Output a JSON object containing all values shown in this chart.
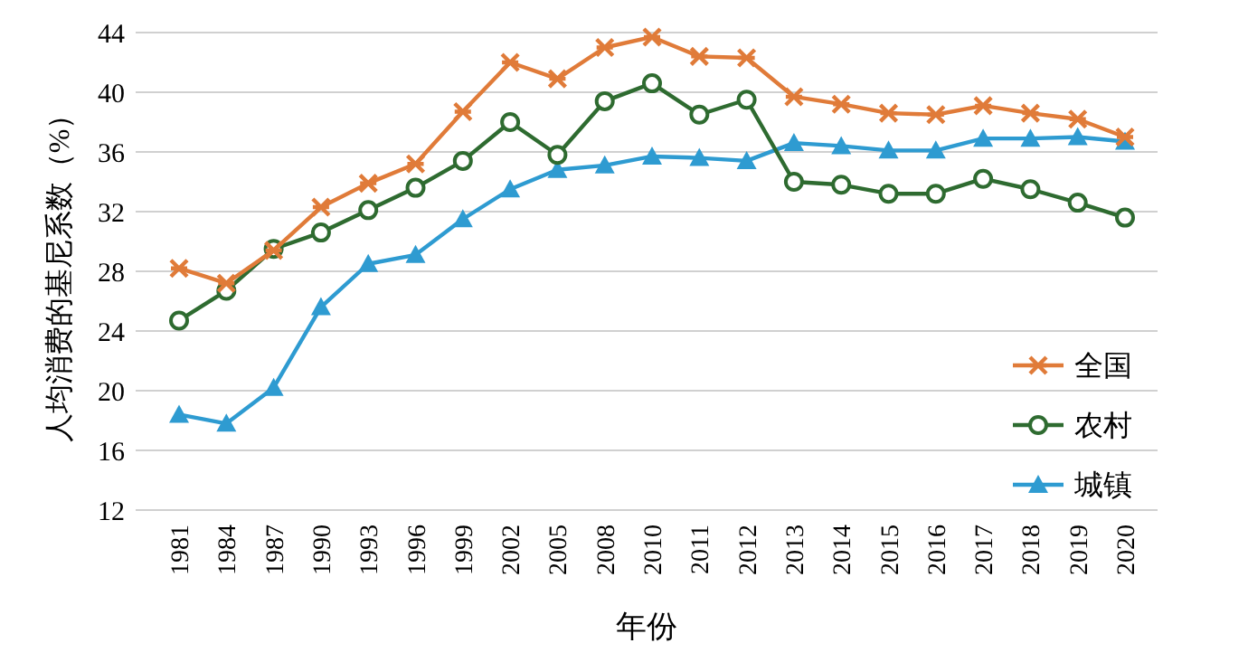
{
  "chart_data": {
    "type": "line",
    "xlabel": "年份",
    "ylabel": "人均消费的基尼系数（%）",
    "categories": [
      "1981",
      "1984",
      "1987",
      "1990",
      "1993",
      "1996",
      "1999",
      "2002",
      "2005",
      "2008",
      "2010",
      "2011",
      "2012",
      "2013",
      "2014",
      "2015",
      "2016",
      "2017",
      "2018",
      "2019",
      "2020"
    ],
    "series": [
      {
        "name": "全国",
        "color": "#e07b39",
        "marker": "cross",
        "values": [
          28.2,
          27.2,
          29.4,
          32.3,
          33.9,
          35.2,
          38.7,
          42.0,
          40.9,
          43.0,
          43.7,
          42.4,
          42.3,
          39.7,
          39.2,
          38.6,
          38.5,
          39.1,
          38.6,
          38.2,
          37.0
        ]
      },
      {
        "name": "农村",
        "color": "#2e6b30",
        "marker": "circle",
        "values": [
          24.7,
          26.7,
          29.5,
          30.6,
          32.1,
          33.6,
          35.4,
          38.0,
          35.8,
          39.4,
          40.6,
          38.5,
          39.5,
          34.0,
          33.8,
          33.2,
          33.2,
          34.2,
          33.5,
          32.6,
          31.6
        ]
      },
      {
        "name": "城镇",
        "color": "#2e9bd1",
        "marker": "triangle",
        "values": [
          18.4,
          17.8,
          20.2,
          25.6,
          28.5,
          29.1,
          31.5,
          33.5,
          34.8,
          35.1,
          35.7,
          35.6,
          35.4,
          36.6,
          36.4,
          36.1,
          36.1,
          36.9,
          36.9,
          37.0,
          36.7
        ]
      }
    ],
    "ylim": [
      12,
      44
    ],
    "yticks": [
      12,
      16,
      20,
      24,
      28,
      32,
      36,
      40,
      44
    ],
    "grid": "y",
    "legend": "bottom right",
    "line_style": "solid"
  }
}
